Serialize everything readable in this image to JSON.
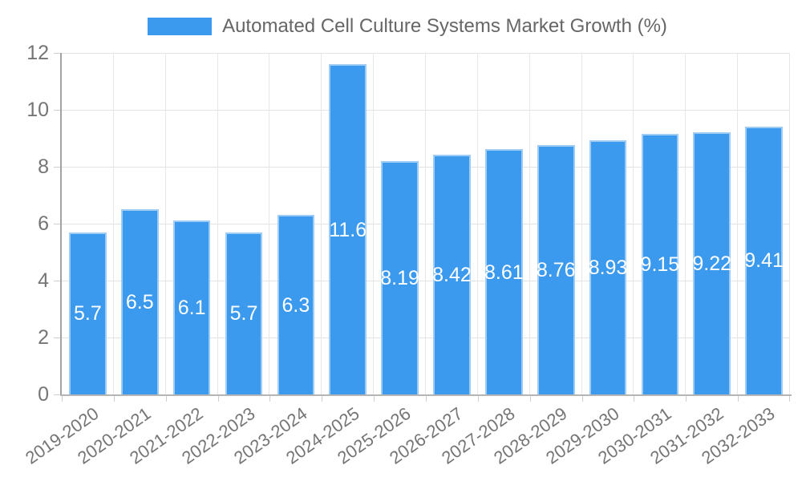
{
  "chart_data": {
    "type": "bar",
    "title": "Automated Cell Culture Systems Market Growth (%)",
    "legend": {
      "label": "Automated Cell Culture Systems Market Growth (%)",
      "position": "top"
    },
    "categories": [
      "2019-2020",
      "2020-2021",
      "2021-2022",
      "2022-2023",
      "2023-2024",
      "2024-2025",
      "2025-2026",
      "2026-2027",
      "2027-2028",
      "2028-2029",
      "2029-2030",
      "2030-2031",
      "2031-2032",
      "2032-2033"
    ],
    "values": [
      5.7,
      6.5,
      6.1,
      5.7,
      6.3,
      11.6,
      8.19,
      8.42,
      8.61,
      8.76,
      8.93,
      9.15,
      9.22,
      9.41
    ],
    "value_labels": [
      "5.7",
      "6.5",
      "6.1",
      "5.7",
      "6.3",
      "11.6",
      "8.19",
      "8.42",
      "8.61",
      "8.76",
      "8.93",
      "9.15",
      "9.22",
      "9.41"
    ],
    "xlabel": "",
    "ylabel": "",
    "ylim": [
      0,
      12
    ],
    "yticks": [
      0,
      2,
      4,
      6,
      8,
      10,
      12
    ],
    "grid": true,
    "value_label_position": "center-of-bar",
    "colors": {
      "bar": "#3b99ee",
      "bar_border": "#9fccf5",
      "bar_label": "#ffffff",
      "axis_text": "#757575",
      "legend_text": "#666666",
      "gridline": "#e3e3e3",
      "axis_line": "#a3a3a3"
    }
  }
}
